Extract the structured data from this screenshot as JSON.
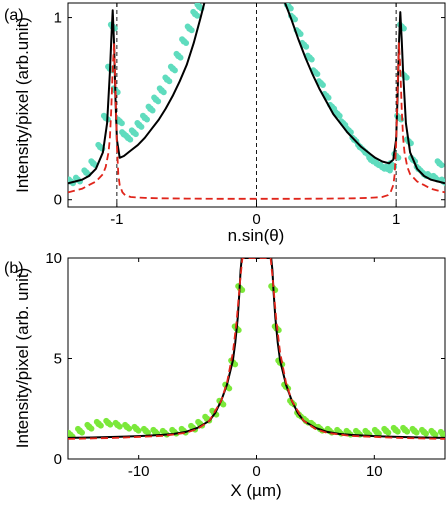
{
  "chart_data": [
    {
      "panel_label": "(a)",
      "type": "line",
      "xlabel": "n.sin(θ)",
      "ylabel": "Intensity/pixel (arb.unit)",
      "xlim": [
        -1.35,
        1.35
      ],
      "ylim": [
        -0.04,
        1.08
      ],
      "xticks": [
        {
          "v": -1,
          "label": "-1"
        },
        {
          "v": 0,
          "label": "0"
        },
        {
          "v": 1,
          "label": "1"
        }
      ],
      "yticks": [
        {
          "v": 0,
          "label": "0"
        },
        {
          "v": 1,
          "label": "1"
        }
      ],
      "vlines": [
        -1,
        0,
        1
      ],
      "colors": {
        "scatter": "#5fdcbe",
        "model": "#000000",
        "dashed": "#e0251b"
      },
      "series": [
        {
          "style": "scatter",
          "x": [
            -1.33,
            -1.28,
            -1.22,
            -1.17,
            -1.12,
            -1.08,
            -1.05,
            -1.03,
            -1.01,
            -0.98,
            -0.95,
            -0.92,
            -0.88,
            -0.84,
            -0.8,
            -0.76,
            -0.72,
            -0.68,
            -0.64,
            -0.6,
            -0.56,
            -0.52,
            -0.48,
            -0.44,
            -0.41,
            0.23,
            0.26,
            0.3,
            0.34,
            0.38,
            0.42,
            0.46,
            0.5,
            0.54,
            0.58,
            0.62,
            0.66,
            0.7,
            0.74,
            0.78,
            0.82,
            0.86,
            0.9,
            0.94,
            0.97,
            1.0,
            1.02,
            1.04,
            1.06,
            1.09,
            1.12,
            1.16,
            1.2,
            1.24,
            1.28,
            1.31,
            1.34
          ],
          "y": [
            0.1,
            0.11,
            0.15,
            0.2,
            0.29,
            0.45,
            0.72,
            0.95,
            0.6,
            0.43,
            0.36,
            0.34,
            0.37,
            0.41,
            0.45,
            0.5,
            0.55,
            0.6,
            0.66,
            0.72,
            0.79,
            0.87,
            0.94,
            1.02,
            1.06,
            1.06,
            1.0,
            0.92,
            0.85,
            0.78,
            0.7,
            0.64,
            0.57,
            0.51,
            0.47,
            0.42,
            0.38,
            0.33,
            0.29,
            0.26,
            0.22,
            0.2,
            0.18,
            0.17,
            0.19,
            0.24,
            0.45,
            0.95,
            0.68,
            0.32,
            0.22,
            0.17,
            0.14,
            0.13,
            0.12,
            0.2,
            0.1
          ]
        },
        {
          "style": "solid",
          "x": [
            -1.35,
            -1.3,
            -1.25,
            -1.2,
            -1.15,
            -1.1,
            -1.07,
            -1.05,
            -1.04,
            -1.03,
            -1.02,
            -1.01,
            -1.0,
            -0.98,
            -0.95,
            -0.9,
            -0.85,
            -0.8,
            -0.75,
            -0.7,
            -0.65,
            -0.6,
            -0.55,
            -0.5,
            -0.45,
            -0.4,
            -0.37,
            0.2,
            0.25,
            0.3,
            0.35,
            0.4,
            0.45,
            0.5,
            0.55,
            0.6,
            0.65,
            0.7,
            0.75,
            0.8,
            0.85,
            0.9,
            0.95,
            0.98,
            1.0,
            1.01,
            1.02,
            1.03,
            1.04,
            1.05,
            1.07,
            1.1,
            1.15,
            1.2,
            1.25,
            1.3,
            1.35
          ],
          "y": [
            0.09,
            0.1,
            0.11,
            0.13,
            0.17,
            0.26,
            0.42,
            0.7,
            0.88,
            1.04,
            0.85,
            0.55,
            0.33,
            0.23,
            0.24,
            0.27,
            0.3,
            0.34,
            0.39,
            0.44,
            0.5,
            0.57,
            0.65,
            0.74,
            0.86,
            1.0,
            1.09,
            1.09,
            0.99,
            0.88,
            0.78,
            0.69,
            0.61,
            0.54,
            0.47,
            0.42,
            0.37,
            0.33,
            0.29,
            0.26,
            0.23,
            0.21,
            0.2,
            0.22,
            0.33,
            0.55,
            0.85,
            1.03,
            0.88,
            0.7,
            0.42,
            0.26,
            0.17,
            0.13,
            0.11,
            0.1,
            0.09
          ]
        },
        {
          "style": "dashed",
          "x": [
            -1.35,
            -1.3,
            -1.25,
            -1.2,
            -1.15,
            -1.1,
            -1.08,
            -1.06,
            -1.05,
            -1.04,
            -1.03,
            -1.02,
            -1.01,
            -1.0,
            -0.99,
            -0.98,
            -0.96,
            -0.94,
            -0.9,
            -0.85,
            -0.8,
            -0.7,
            -0.5,
            -0.3,
            0,
            0.3,
            0.5,
            0.7,
            0.8,
            0.85,
            0.9,
            0.94,
            0.96,
            0.98,
            0.99,
            1.0,
            1.01,
            1.02,
            1.03,
            1.04,
            1.05,
            1.06,
            1.08,
            1.1,
            1.15,
            1.2,
            1.25,
            1.3,
            1.35
          ],
          "y": [
            0.04,
            0.05,
            0.06,
            0.08,
            0.1,
            0.14,
            0.18,
            0.26,
            0.34,
            0.5,
            0.72,
            0.86,
            0.6,
            0.3,
            0.14,
            0.08,
            0.04,
            0.025,
            0.015,
            0.012,
            0.01,
            0.008,
            0.006,
            0.005,
            0.005,
            0.005,
            0.006,
            0.008,
            0.01,
            0.012,
            0.015,
            0.025,
            0.04,
            0.08,
            0.14,
            0.3,
            0.6,
            0.86,
            0.72,
            0.5,
            0.34,
            0.26,
            0.18,
            0.14,
            0.1,
            0.08,
            0.06,
            0.05,
            0.04
          ]
        }
      ]
    },
    {
      "panel_label": "(b)",
      "type": "line",
      "xlabel": "X (µm)",
      "ylabel": "Intensity/pixel (arb. unit)",
      "xlim": [
        -16,
        16
      ],
      "ylim": [
        0,
        10
      ],
      "xticks": [
        {
          "v": -10,
          "label": "-10"
        },
        {
          "v": 0,
          "label": "0"
        },
        {
          "v": 10,
          "label": "10"
        }
      ],
      "yticks": [
        {
          "v": 0,
          "label": "0"
        },
        {
          "v": 5,
          "label": "5"
        },
        {
          "v": 10,
          "label": "10"
        }
      ],
      "colors": {
        "scatter": "#7be83a",
        "model": "#000000",
        "dashed": "#e0251b"
      },
      "series": [
        {
          "style": "scatter",
          "x": [
            -15.8,
            -15,
            -14.2,
            -13.4,
            -12.6,
            -11.8,
            -11,
            -10.2,
            -9.4,
            -8.6,
            -7.8,
            -7,
            -6.2,
            -5.4,
            -4.8,
            -4.2,
            -3.6,
            -3,
            -2.5,
            -2,
            -1.7,
            -1.4,
            1.4,
            1.7,
            2,
            2.5,
            3,
            3.6,
            4.2,
            4.8,
            5.4,
            6.2,
            7,
            7.8,
            8.6,
            9.4,
            10.2,
            11,
            11.8,
            12.6,
            13.4,
            14.2,
            15,
            15.8
          ],
          "y": [
            1.2,
            1.4,
            1.6,
            1.75,
            1.8,
            1.7,
            1.6,
            1.5,
            1.4,
            1.35,
            1.3,
            1.35,
            1.4,
            1.55,
            1.75,
            2.0,
            2.3,
            2.8,
            3.6,
            4.8,
            6.5,
            8.5,
            8.5,
            6.5,
            4.8,
            3.6,
            2.8,
            2.2,
            1.9,
            1.7,
            1.5,
            1.4,
            1.35,
            1.3,
            1.3,
            1.3,
            1.35,
            1.4,
            1.45,
            1.45,
            1.4,
            1.35,
            1.3,
            1.25
          ]
        },
        {
          "style": "solid",
          "x": [
            -16,
            -14,
            -12,
            -10,
            -8,
            -7,
            -6,
            -5,
            -4,
            -3.5,
            -3,
            -2.5,
            -2,
            -1.8,
            -1.6,
            -1.45,
            -1.35,
            -1.25,
            1.25,
            1.35,
            1.45,
            1.6,
            1.8,
            2,
            2.5,
            3,
            3.5,
            4,
            5,
            6,
            7,
            8,
            10,
            12,
            14,
            16
          ],
          "y": [
            1.05,
            1.07,
            1.1,
            1.14,
            1.2,
            1.25,
            1.35,
            1.55,
            1.9,
            2.3,
            2.9,
            3.7,
            4.9,
            5.8,
            7.0,
            8.3,
            9.4,
            10,
            10,
            9.4,
            8.3,
            7.0,
            5.8,
            4.9,
            3.7,
            2.9,
            2.3,
            1.9,
            1.55,
            1.35,
            1.25,
            1.2,
            1.14,
            1.1,
            1.07,
            1.05
          ]
        },
        {
          "style": "dashed",
          "x": [
            -16,
            -12,
            -8,
            -6,
            -5,
            -4,
            -3,
            -2.5,
            -2,
            -1.7,
            -1.4,
            -1.2,
            1.2,
            1.4,
            1.7,
            2,
            2.5,
            3,
            4,
            5,
            6,
            8,
            12,
            16
          ],
          "y": [
            1.0,
            1.05,
            1.15,
            1.3,
            1.5,
            1.9,
            2.9,
            3.8,
            5.3,
            6.8,
            8.8,
            10,
            10,
            8.8,
            6.8,
            5.3,
            3.8,
            2.9,
            1.9,
            1.5,
            1.3,
            1.15,
            1.05,
            1.0
          ]
        }
      ]
    }
  ]
}
